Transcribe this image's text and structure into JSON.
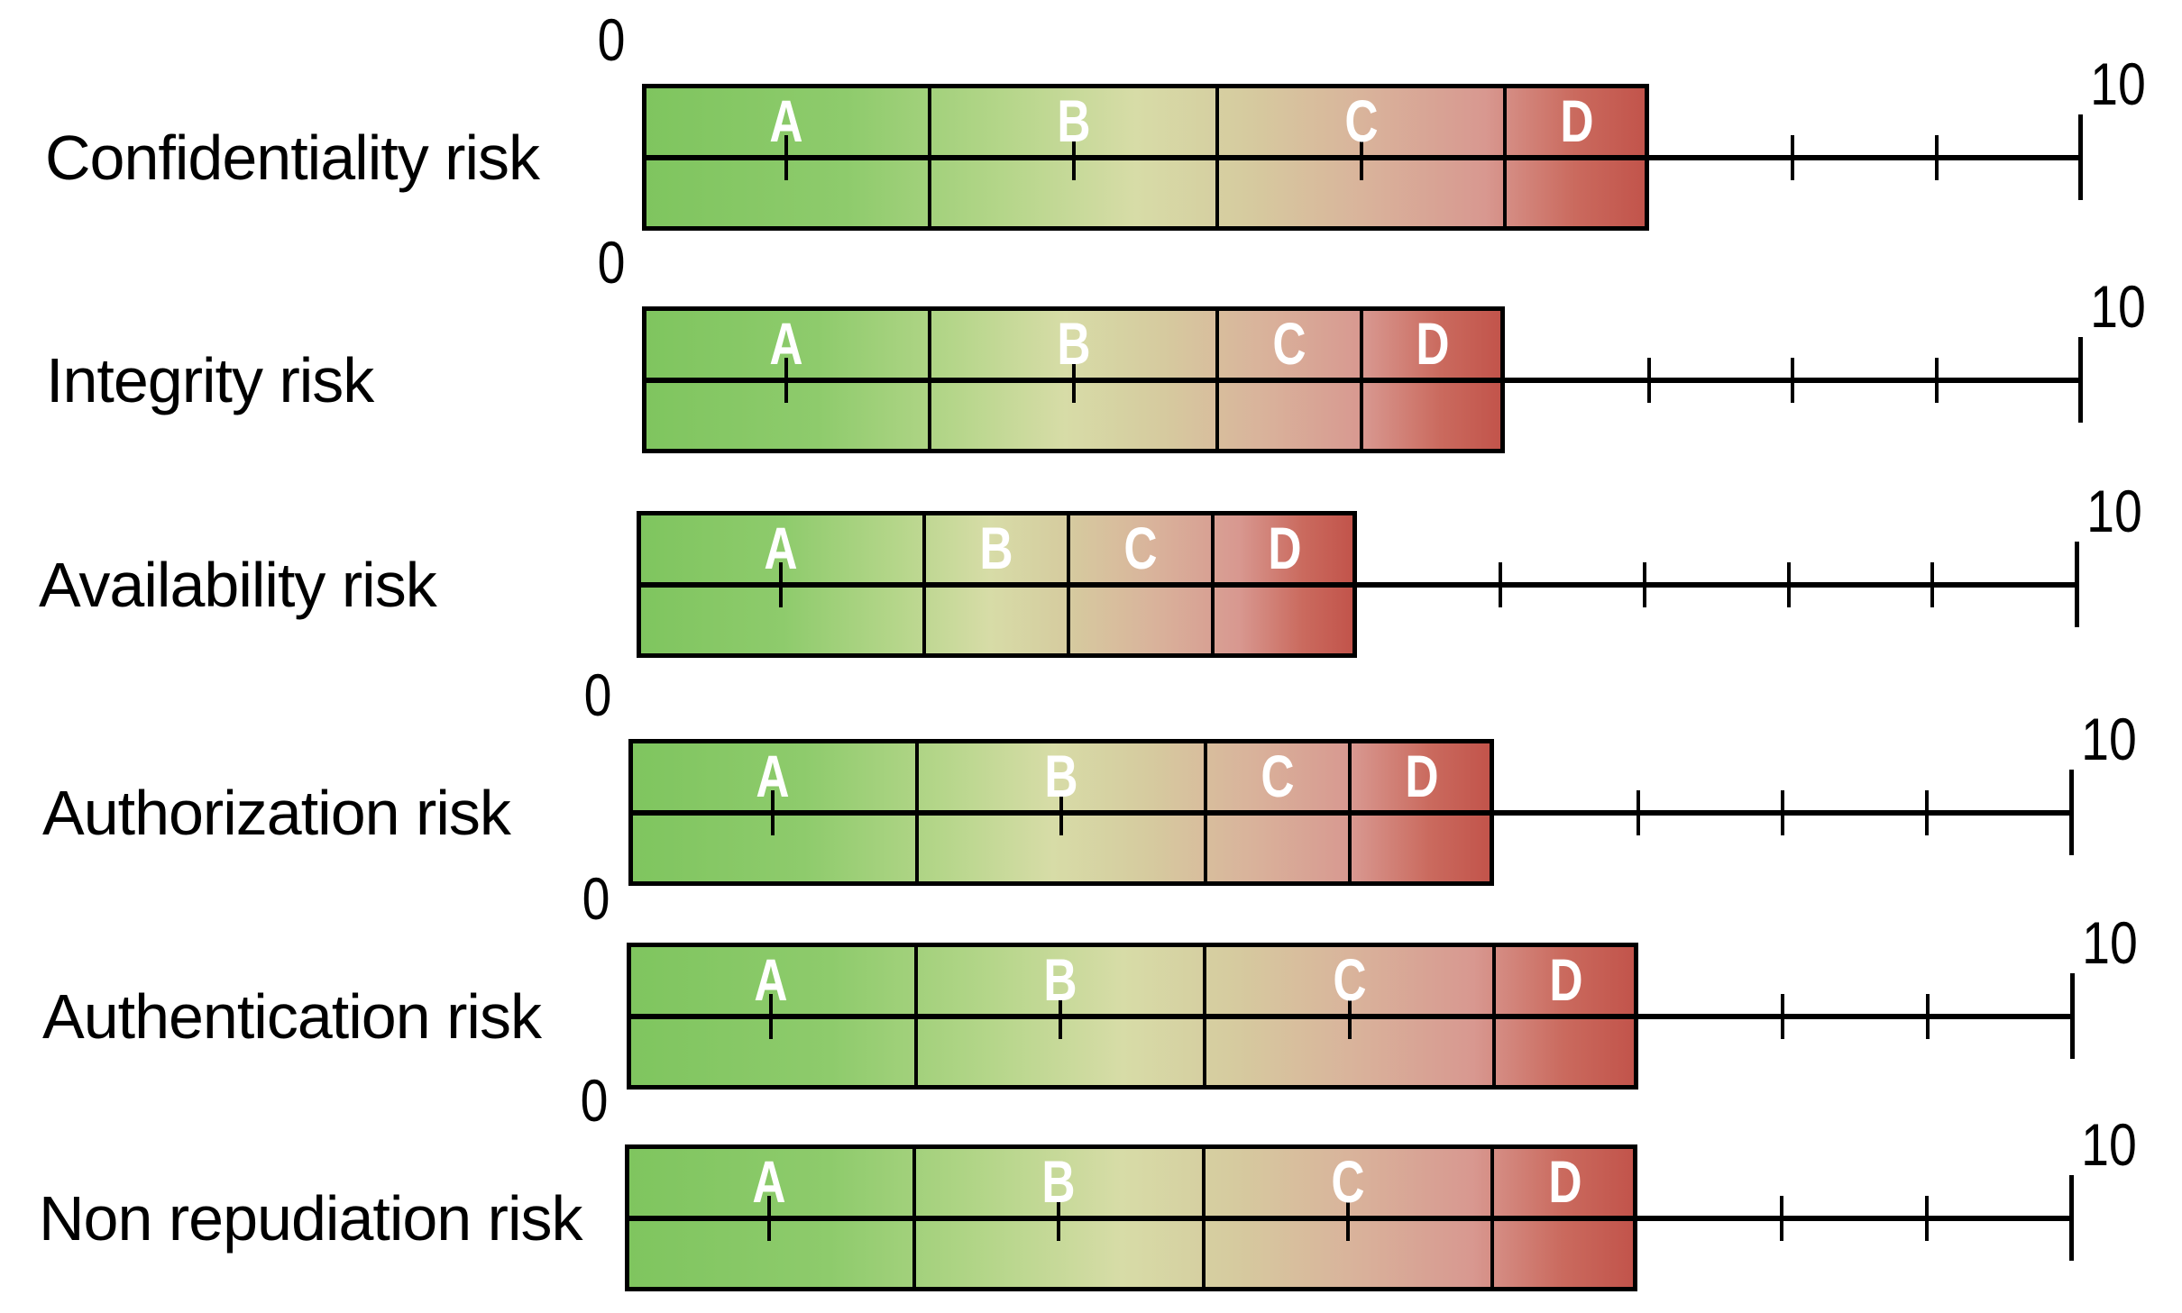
{
  "page": {
    "background_color": "#ffffff"
  },
  "chart_data": {
    "type": "bar",
    "variant": "horizontal-segmented-risk-scale",
    "title": "",
    "xlabel": "",
    "ylabel": "",
    "grid": false,
    "legend_position": "none",
    "axis": {
      "min": 0,
      "max": 10,
      "tick_step": 1,
      "min_label": "0",
      "max_label": "10"
    },
    "segment_letters": [
      "A",
      "B",
      "C",
      "D"
    ],
    "rows": [
      {
        "label": "Confidentiality risk",
        "show_zero_label": true,
        "total": 7,
        "segments": [
          {
            "letter": "A",
            "start": 0,
            "end": 2
          },
          {
            "letter": "B",
            "start": 2,
            "end": 4
          },
          {
            "letter": "C",
            "start": 4,
            "end": 6
          },
          {
            "letter": "D",
            "start": 6,
            "end": 7
          }
        ]
      },
      {
        "label": "Integrity risk",
        "show_zero_label": true,
        "total": 6,
        "segments": [
          {
            "letter": "A",
            "start": 0,
            "end": 2
          },
          {
            "letter": "B",
            "start": 2,
            "end": 4
          },
          {
            "letter": "C",
            "start": 4,
            "end": 5
          },
          {
            "letter": "D",
            "start": 5,
            "end": 6
          }
        ]
      },
      {
        "label": "Availability risk",
        "show_zero_label": false,
        "total": 5,
        "segments": [
          {
            "letter": "A",
            "start": 0,
            "end": 2
          },
          {
            "letter": "B",
            "start": 2,
            "end": 3
          },
          {
            "letter": "C",
            "start": 3,
            "end": 4
          },
          {
            "letter": "D",
            "start": 4,
            "end": 5
          }
        ]
      },
      {
        "label": "Authorization risk",
        "show_zero_label": true,
        "total": 6,
        "segments": [
          {
            "letter": "A",
            "start": 0,
            "end": 2
          },
          {
            "letter": "B",
            "start": 2,
            "end": 4
          },
          {
            "letter": "C",
            "start": 4,
            "end": 5
          },
          {
            "letter": "D",
            "start": 5,
            "end": 6
          }
        ]
      },
      {
        "label": "Authentication risk",
        "show_zero_label": true,
        "total": 7,
        "segments": [
          {
            "letter": "A",
            "start": 0,
            "end": 2
          },
          {
            "letter": "B",
            "start": 2,
            "end": 4
          },
          {
            "letter": "C",
            "start": 4,
            "end": 6
          },
          {
            "letter": "D",
            "start": 6,
            "end": 7
          }
        ]
      },
      {
        "label": "Non repudiation risk",
        "show_zero_label": true,
        "total": 7,
        "segments": [
          {
            "letter": "A",
            "start": 0,
            "end": 2
          },
          {
            "letter": "B",
            "start": 2,
            "end": 4
          },
          {
            "letter": "C",
            "start": 4,
            "end": 6
          },
          {
            "letter": "D",
            "start": 6,
            "end": 7
          }
        ]
      }
    ],
    "colors": {
      "line": "#000000",
      "letter_text": "#ffffff",
      "label_text": "#000000",
      "background": "#ffffff",
      "gradient_stops": [
        {
          "color": "#7fc55f",
          "pos": 0
        },
        {
          "color": "#8ecb6c",
          "pos": 20
        },
        {
          "color": "#b5d68a",
          "pos": 36
        },
        {
          "color": "#d7dca7",
          "pos": 49
        },
        {
          "color": "#d6cb9f",
          "pos": 60
        },
        {
          "color": "#d9b39b",
          "pos": 72
        },
        {
          "color": "#d89890",
          "pos": 84
        },
        {
          "color": "#ca6a5e",
          "pos": 93
        },
        {
          "color": "#c2544b",
          "pos": 100
        }
      ]
    }
  }
}
